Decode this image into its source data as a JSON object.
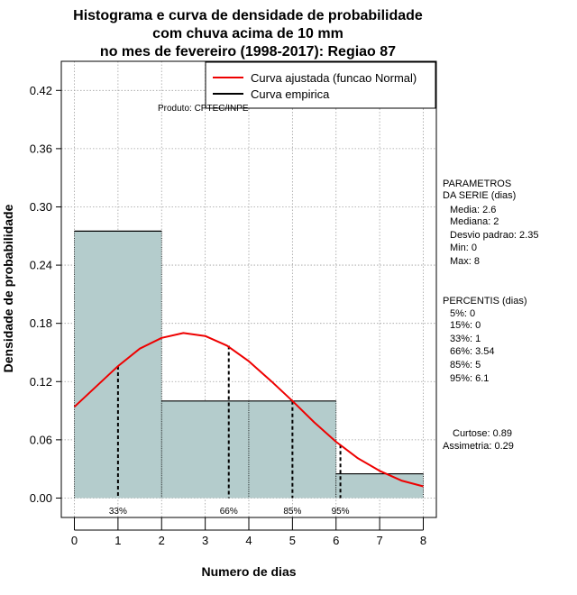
{
  "chart_data": {
    "type": "bar",
    "title": [
      "Histograma e curva de densidade de probabilidade",
      "com chuva acima de 10 mm",
      "no mes de fevereiro (1998-2017): Regiao 87"
    ],
    "xlabel": "Numero de dias",
    "ylabel": "Densidade de probabilidade",
    "xlim": [
      -0.3,
      8.3
    ],
    "ylim": [
      -0.02,
      0.45
    ],
    "x_ticks": [
      0,
      1,
      2,
      3,
      4,
      5,
      6,
      7,
      8
    ],
    "y_ticks": [
      0.0,
      0.06,
      0.12,
      0.18,
      0.24,
      0.3,
      0.36,
      0.42
    ],
    "y_tick_labels": [
      "0.00",
      "0.06",
      "0.12",
      "0.18",
      "0.24",
      "0.30",
      "0.36",
      "0.42"
    ],
    "grid": true,
    "bins": [
      {
        "x0": 0,
        "x1": 2,
        "density": 0.275
      },
      {
        "x0": 2,
        "x1": 4,
        "density": 0.1
      },
      {
        "x0": 4,
        "x1": 6,
        "density": 0.1
      },
      {
        "x0": 6,
        "x1": 8,
        "density": 0.025
      }
    ],
    "fitted_curve": {
      "name": "Curva ajustada (funcao Normal)",
      "color": "#ee0000",
      "x": [
        0,
        0.5,
        1,
        1.5,
        2,
        2.5,
        3,
        3.5,
        4,
        4.5,
        5,
        5.5,
        6,
        6.5,
        7,
        7.5,
        8
      ],
      "y": [
        0.094,
        0.115,
        0.136,
        0.154,
        0.165,
        0.17,
        0.167,
        0.157,
        0.141,
        0.121,
        0.1,
        0.078,
        0.058,
        0.041,
        0.028,
        0.018,
        0.012
      ]
    },
    "empirical_curve": {
      "name": "Curva empirica",
      "color": "#000000"
    },
    "percentile_markers": [
      {
        "label": "33%",
        "x": 1.0,
        "y": 0.136
      },
      {
        "label": "66%",
        "x": 3.54,
        "y": 0.157
      },
      {
        "label": "85%",
        "x": 5.0,
        "y": 0.1
      },
      {
        "label": "95%",
        "x": 6.1,
        "y": 0.055
      }
    ],
    "legend_position": "top-right",
    "colors": {
      "bar_fill": "#b4cccc",
      "bar_stroke": "#000000",
      "grid": "#a0a0a0"
    }
  },
  "watermark": "Produto: CPTEC/INPE",
  "side_panel": {
    "parametros_title": [
      "PARAMETROS",
      "DA SERIE (dias)"
    ],
    "parametros": [
      "Media: 2.6",
      "Mediana: 2",
      "Desvio padrao: 2.35",
      "Min: 0",
      "Max: 8"
    ],
    "percentis_title": "PERCENTIS (dias)",
    "percentis": [
      "5%: 0",
      "15%: 0",
      "33%: 1",
      "66%: 3.54",
      "85%: 5",
      "95%: 6.1"
    ],
    "curtose": "Curtose: 0.89",
    "assimetria": "Assimetria: 0.29"
  }
}
